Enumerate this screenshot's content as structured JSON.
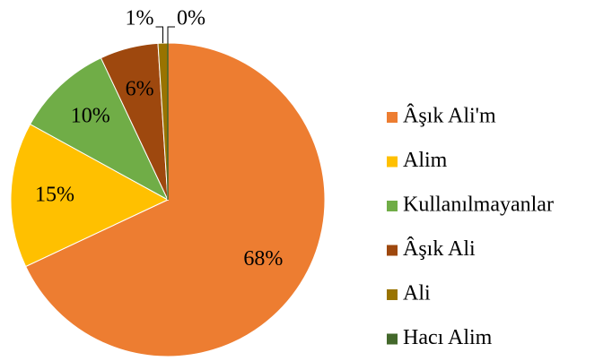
{
  "chart_data": {
    "type": "pie",
    "categories": [
      "Âşık Ali'm",
      "Alim",
      "Kullanılmayanlar",
      "Âşık Ali",
      "Ali",
      "Hacı Alim"
    ],
    "values": [
      68,
      15,
      10,
      6,
      1,
      0
    ],
    "value_labels": [
      "68%",
      "15%",
      "10%",
      "6%",
      "1%",
      "0%"
    ],
    "colors": [
      "#ED7D31",
      "#FFC000",
      "#70AD47",
      "#9E480E",
      "#997300",
      "#43682B"
    ],
    "legend": "right"
  }
}
